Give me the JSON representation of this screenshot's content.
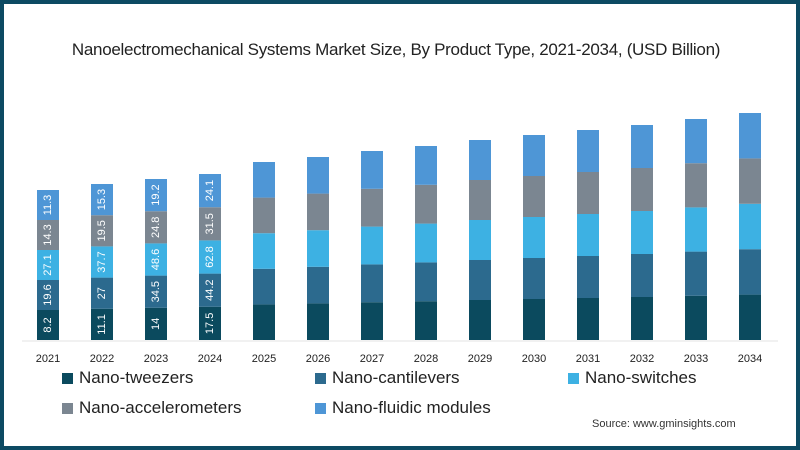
{
  "chart_data": {
    "type": "bar",
    "stacked": true,
    "title": "Nanoelectromechanical Systems Market Size, By Product Type, 2021-2034, (USD Billion)",
    "xlabel": "",
    "ylabel": "",
    "categories": [
      "2021",
      "2022",
      "2023",
      "2024",
      "2025",
      "2026",
      "2027",
      "2028",
      "2029",
      "2030",
      "2031",
      "2032",
      "2033",
      "2034"
    ],
    "series": [
      {
        "name": "Nano-tweezers",
        "color": "#0b4a5e",
        "values": [
          8.2,
          11.1,
          14,
          17.5,
          null,
          null,
          null,
          null,
          null,
          null,
          null,
          null,
          null,
          null
        ]
      },
      {
        "name": "Nano-cantilevers",
        "color": "#2c6a8e",
        "values": [
          19.6,
          27,
          34.5,
          44.2,
          null,
          null,
          null,
          null,
          null,
          null,
          null,
          null,
          null,
          null
        ]
      },
      {
        "name": "Nano-switches",
        "color": "#3db1e3",
        "values": [
          27.1,
          37.7,
          48.6,
          62.8,
          null,
          null,
          null,
          null,
          null,
          null,
          null,
          null,
          null,
          null
        ]
      },
      {
        "name": "Nano-accelerometers",
        "color": "#7b8691",
        "values": [
          14.3,
          19.5,
          24.8,
          31.5,
          null,
          null,
          null,
          null,
          null,
          null,
          null,
          null,
          null,
          null
        ]
      },
      {
        "name": "Nano-fluidic modules",
        "color": "#4e96d6",
        "values": [
          11.3,
          15.3,
          19.2,
          24.1,
          null,
          null,
          null,
          null,
          null,
          null,
          null,
          null,
          null,
          null
        ]
      }
    ],
    "legend_position": "bottom",
    "grid": false
  },
  "source": "Source: www.gminsights.com"
}
